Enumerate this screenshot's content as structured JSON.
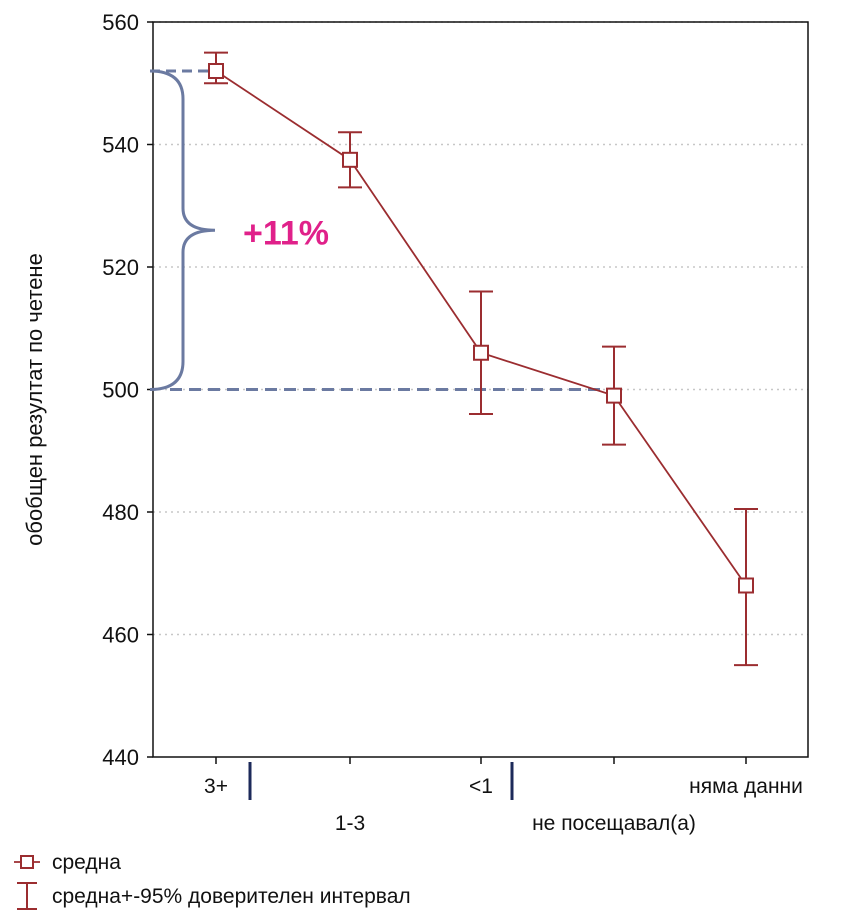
{
  "chart_data": {
    "type": "line",
    "title": "",
    "ylabel": "обобщен резултат по четене",
    "xlabel": "",
    "ylim": [
      440,
      560
    ],
    "yticks": [
      440,
      460,
      480,
      500,
      520,
      540,
      560
    ],
    "grid": true,
    "categories": [
      "3+",
      "1-3",
      "<1",
      "не посещавал(а)",
      "няма данни"
    ],
    "series": [
      {
        "values": [
          552,
          537.5,
          506,
          499,
          468
        ],
        "ci_low": [
          550,
          533,
          496,
          491,
          455
        ],
        "ci_high": [
          555,
          542,
          516,
          507,
          480.5
        ],
        "color": "#9b2d30"
      }
    ],
    "legend": {
      "placement": "bottom-left",
      "entries": [
        {
          "label": "средна",
          "marker": "square"
        },
        {
          "label": "средна+-95% доверителен интервал",
          "marker": "errorbar"
        }
      ]
    },
    "annotations": [
      {
        "text": "+11%",
        "color": "#e0218a",
        "from_value": 500,
        "to_value": 552
      }
    ],
    "reference_line": {
      "value": 500,
      "color": "#6b7aa1"
    }
  }
}
